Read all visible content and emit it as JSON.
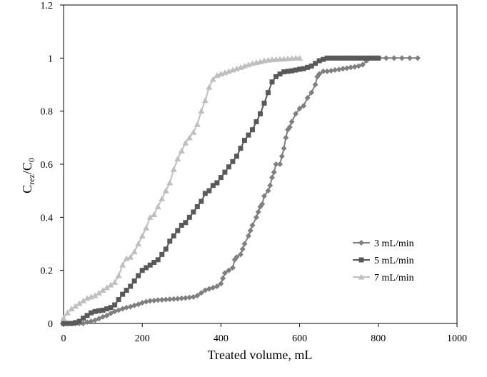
{
  "chart_data": {
    "type": "line",
    "xlabel": "Treated volume, mL",
    "ylabel": {
      "base": "C",
      "sub1": "rez",
      "sep": "/C",
      "sub2": "0"
    },
    "xlim": [
      0,
      1000
    ],
    "ylim": [
      0,
      1.2
    ],
    "xticks": [
      "0",
      "200",
      "400",
      "600",
      "800",
      "1000"
    ],
    "yticks": [
      "0",
      "0.2",
      "0.4",
      "0.6",
      "0.8",
      "1",
      "1.2"
    ],
    "grid": false,
    "legend_position": "bottom-right",
    "series": [
      {
        "name": "3 mL/min",
        "marker": "diamond",
        "color": "#7f7f7f",
        "points": [
          [
            0,
            0
          ],
          [
            10,
            0
          ],
          [
            20,
            0
          ],
          [
            30,
            0
          ],
          [
            40,
            0
          ],
          [
            50,
            0
          ],
          [
            60,
            0.005
          ],
          [
            70,
            0.008
          ],
          [
            80,
            0.012
          ],
          [
            90,
            0.018
          ],
          [
            100,
            0.025
          ],
          [
            110,
            0.03
          ],
          [
            120,
            0.038
          ],
          [
            130,
            0.045
          ],
          [
            140,
            0.05
          ],
          [
            150,
            0.055
          ],
          [
            160,
            0.06
          ],
          [
            170,
            0.063
          ],
          [
            180,
            0.068
          ],
          [
            190,
            0.072
          ],
          [
            200,
            0.078
          ],
          [
            210,
            0.082
          ],
          [
            220,
            0.085
          ],
          [
            230,
            0.086
          ],
          [
            240,
            0.088
          ],
          [
            250,
            0.089
          ],
          [
            260,
            0.09
          ],
          [
            270,
            0.091
          ],
          [
            280,
            0.092
          ],
          [
            290,
            0.093
          ],
          [
            300,
            0.095
          ],
          [
            310,
            0.096
          ],
          [
            320,
            0.098
          ],
          [
            330,
            0.1
          ],
          [
            340,
            0.105
          ],
          [
            350,
            0.115
          ],
          [
            360,
            0.125
          ],
          [
            370,
            0.13
          ],
          [
            380,
            0.135
          ],
          [
            390,
            0.14
          ],
          [
            400,
            0.15
          ],
          [
            405,
            0.17
          ],
          [
            410,
            0.19
          ],
          [
            420,
            0.2
          ],
          [
            430,
            0.21
          ],
          [
            435,
            0.24
          ],
          [
            440,
            0.25
          ],
          [
            450,
            0.26
          ],
          [
            455,
            0.28
          ],
          [
            460,
            0.3
          ],
          [
            470,
            0.33
          ],
          [
            475,
            0.35
          ],
          [
            480,
            0.37
          ],
          [
            490,
            0.4
          ],
          [
            495,
            0.42
          ],
          [
            500,
            0.44
          ],
          [
            505,
            0.45
          ],
          [
            510,
            0.48
          ],
          [
            520,
            0.5
          ],
          [
            525,
            0.52
          ],
          [
            530,
            0.55
          ],
          [
            535,
            0.57
          ],
          [
            540,
            0.6
          ],
          [
            550,
            0.6
          ],
          [
            555,
            0.63
          ],
          [
            560,
            0.66
          ],
          [
            565,
            0.7
          ],
          [
            570,
            0.73
          ],
          [
            575,
            0.74
          ],
          [
            580,
            0.76
          ],
          [
            590,
            0.79
          ],
          [
            600,
            0.81
          ],
          [
            610,
            0.82
          ],
          [
            620,
            0.85
          ],
          [
            630,
            0.87
          ],
          [
            640,
            0.9
          ],
          [
            645,
            0.93
          ],
          [
            650,
            0.94
          ],
          [
            660,
            0.95
          ],
          [
            670,
            0.95
          ],
          [
            680,
            0.952
          ],
          [
            690,
            0.955
          ],
          [
            700,
            0.957
          ],
          [
            710,
            0.96
          ],
          [
            720,
            0.962
          ],
          [
            730,
            0.965
          ],
          [
            740,
            0.967
          ],
          [
            750,
            0.97
          ],
          [
            760,
            0.975
          ],
          [
            770,
            0.99
          ],
          [
            780,
            1
          ],
          [
            800,
            1
          ],
          [
            820,
            1
          ],
          [
            840,
            1
          ],
          [
            860,
            1
          ],
          [
            880,
            1
          ],
          [
            900,
            1
          ]
        ]
      },
      {
        "name": "5 mL/min",
        "marker": "square",
        "color": "#595959",
        "points": [
          [
            0,
            0
          ],
          [
            10,
            0
          ],
          [
            20,
            0
          ],
          [
            30,
            0.003
          ],
          [
            40,
            0.008
          ],
          [
            50,
            0.02
          ],
          [
            60,
            0.03
          ],
          [
            70,
            0.04
          ],
          [
            80,
            0.045
          ],
          [
            90,
            0.048
          ],
          [
            100,
            0.05
          ],
          [
            110,
            0.055
          ],
          [
            120,
            0.06
          ],
          [
            130,
            0.07
          ],
          [
            140,
            0.09
          ],
          [
            150,
            0.11
          ],
          [
            160,
            0.125
          ],
          [
            170,
            0.14
          ],
          [
            180,
            0.16
          ],
          [
            190,
            0.18
          ],
          [
            200,
            0.2
          ],
          [
            210,
            0.21
          ],
          [
            220,
            0.22
          ],
          [
            230,
            0.23
          ],
          [
            240,
            0.24
          ],
          [
            250,
            0.26
          ],
          [
            260,
            0.28
          ],
          [
            270,
            0.31
          ],
          [
            280,
            0.33
          ],
          [
            290,
            0.35
          ],
          [
            300,
            0.37
          ],
          [
            310,
            0.38
          ],
          [
            320,
            0.4
          ],
          [
            330,
            0.42
          ],
          [
            340,
            0.44
          ],
          [
            350,
            0.46
          ],
          [
            360,
            0.49
          ],
          [
            370,
            0.5
          ],
          [
            380,
            0.52
          ],
          [
            390,
            0.53
          ],
          [
            400,
            0.55
          ],
          [
            410,
            0.57
          ],
          [
            420,
            0.59
          ],
          [
            430,
            0.61
          ],
          [
            440,
            0.63
          ],
          [
            450,
            0.66
          ],
          [
            460,
            0.69
          ],
          [
            470,
            0.71
          ],
          [
            480,
            0.73
          ],
          [
            490,
            0.76
          ],
          [
            500,
            0.79
          ],
          [
            510,
            0.83
          ],
          [
            520,
            0.87
          ],
          [
            530,
            0.91
          ],
          [
            540,
            0.93
          ],
          [
            550,
            0.94
          ],
          [
            560,
            0.948
          ],
          [
            570,
            0.95
          ],
          [
            580,
            0.952
          ],
          [
            590,
            0.955
          ],
          [
            600,
            0.958
          ],
          [
            610,
            0.96
          ],
          [
            620,
            0.965
          ],
          [
            630,
            0.97
          ],
          [
            640,
            0.98
          ],
          [
            650,
            0.99
          ],
          [
            660,
            0.995
          ],
          [
            670,
            1
          ],
          [
            680,
            1
          ],
          [
            690,
            1
          ],
          [
            700,
            1
          ],
          [
            710,
            1
          ],
          [
            720,
            1
          ],
          [
            730,
            1
          ],
          [
            740,
            1
          ],
          [
            750,
            1
          ],
          [
            760,
            1
          ],
          [
            770,
            1
          ],
          [
            780,
            1
          ],
          [
            790,
            1
          ],
          [
            800,
            1
          ]
        ]
      },
      {
        "name": "7 mL/min",
        "marker": "triangle",
        "color": "#bfbfbf",
        "points": [
          [
            0,
            0.02
          ],
          [
            10,
            0.04
          ],
          [
            20,
            0.055
          ],
          [
            30,
            0.065
          ],
          [
            40,
            0.075
          ],
          [
            50,
            0.085
          ],
          [
            60,
            0.095
          ],
          [
            70,
            0.1
          ],
          [
            80,
            0.105
          ],
          [
            90,
            0.115
          ],
          [
            100,
            0.125
          ],
          [
            110,
            0.135
          ],
          [
            120,
            0.145
          ],
          [
            130,
            0.155
          ],
          [
            140,
            0.18
          ],
          [
            150,
            0.22
          ],
          [
            160,
            0.245
          ],
          [
            170,
            0.25
          ],
          [
            180,
            0.27
          ],
          [
            190,
            0.3
          ],
          [
            200,
            0.33
          ],
          [
            210,
            0.36
          ],
          [
            220,
            0.4
          ],
          [
            230,
            0.41
          ],
          [
            240,
            0.44
          ],
          [
            250,
            0.47
          ],
          [
            260,
            0.5
          ],
          [
            270,
            0.53
          ],
          [
            280,
            0.58
          ],
          [
            290,
            0.62
          ],
          [
            300,
            0.65
          ],
          [
            310,
            0.68
          ],
          [
            320,
            0.7
          ],
          [
            330,
            0.72
          ],
          [
            340,
            0.75
          ],
          [
            350,
            0.8
          ],
          [
            360,
            0.84
          ],
          [
            370,
            0.89
          ],
          [
            380,
            0.92
          ],
          [
            390,
            0.935
          ],
          [
            400,
            0.94
          ],
          [
            410,
            0.945
          ],
          [
            420,
            0.95
          ],
          [
            430,
            0.955
          ],
          [
            440,
            0.96
          ],
          [
            450,
            0.965
          ],
          [
            460,
            0.97
          ],
          [
            470,
            0.975
          ],
          [
            480,
            0.98
          ],
          [
            490,
            0.983
          ],
          [
            500,
            0.986
          ],
          [
            510,
            0.99
          ],
          [
            520,
            0.992
          ],
          [
            530,
            0.994
          ],
          [
            540,
            0.995
          ],
          [
            550,
            0.996
          ],
          [
            560,
            0.997
          ],
          [
            570,
            0.998
          ],
          [
            580,
            0.999
          ],
          [
            590,
            1
          ],
          [
            600,
            1
          ]
        ]
      }
    ]
  }
}
